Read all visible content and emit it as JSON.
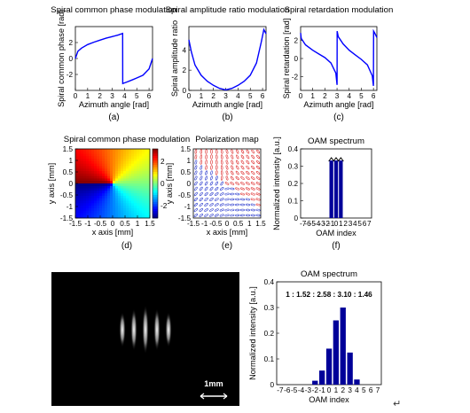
{
  "chart_data": [
    {
      "panel_label": "(a)",
      "type": "line",
      "title": "Spiral common phase modulation",
      "xlabel": "Azimuth angle [rad]",
      "ylabel": "Spiral common phase [rad]",
      "xlim": [
        0,
        6.283
      ],
      "ylim": [
        -4,
        4
      ],
      "xticks": [
        "0",
        "1",
        "2",
        "3",
        "4",
        "5",
        "6"
      ],
      "yticks": [
        "-2",
        "0",
        "2"
      ],
      "color": "#0000ff",
      "series": [
        {
          "x": [
            0,
            0.2,
            0.5,
            1,
            1.5,
            2,
            2.5,
            3,
            3.5,
            3.85,
            3.86,
            4.2,
            4.6,
            5,
            5.5,
            6,
            6.283
          ],
          "y": [
            0,
            0.9,
            1.3,
            1.75,
            2.05,
            2.3,
            2.55,
            2.75,
            2.95,
            3.14,
            -3.14,
            -2.95,
            -2.7,
            -2.45,
            -2.1,
            -1.3,
            0
          ]
        }
      ]
    },
    {
      "panel_label": "(b)",
      "type": "line",
      "title": "Spiral amplitude ratio modulation",
      "xlabel": "Azimuth angle [rad]",
      "ylabel": "Spiral amplitude ratio",
      "xlim": [
        0,
        6.283
      ],
      "ylim": [
        0,
        6.3
      ],
      "xticks": [
        "0",
        "1",
        "2",
        "3",
        "4",
        "5",
        "6"
      ],
      "yticks": [
        "0",
        "2",
        "4"
      ],
      "color": "#0000ff",
      "series": [
        {
          "x": [
            0,
            0.2,
            0.5,
            1,
            1.5,
            2,
            2.5,
            3,
            3.5,
            4,
            4.5,
            5,
            5.5,
            5.9,
            6.1,
            6.283
          ],
          "y": [
            5,
            3.8,
            2.5,
            1.5,
            0.9,
            0.5,
            0.2,
            0.05,
            0.2,
            0.5,
            0.9,
            1.5,
            2.7,
            4.8,
            6,
            5.6
          ]
        }
      ]
    },
    {
      "panel_label": "(c)",
      "type": "line",
      "title": "Spiral retardation modulation",
      "xlabel": "Azimuth angle [rad]",
      "ylabel": "Spiral retardation [rad]",
      "xlim": [
        0,
        6.283
      ],
      "ylim": [
        -3.5,
        3.5
      ],
      "xticks": [
        "0",
        "1",
        "2",
        "3",
        "4",
        "5",
        "6"
      ],
      "yticks": [
        "-2",
        "0",
        "2"
      ],
      "color": "#0000ff",
      "series": [
        {
          "x": [
            0,
            0.05,
            0.4,
            1,
            1.5,
            2,
            2.5,
            2.9,
            3.0,
            3.01,
            3.1,
            3.5,
            4,
            4.5,
            5,
            5.5,
            5.9,
            6.0,
            6.01,
            6.1,
            6.283
          ],
          "y": [
            2.8,
            2.2,
            1.5,
            0.9,
            0.5,
            0.1,
            -0.5,
            -1.6,
            -2.9,
            3.0,
            2.4,
            1.6,
            0.9,
            0.4,
            -0.1,
            -0.7,
            -1.9,
            -3.0,
            3.0,
            2.8,
            2.3
          ]
        }
      ]
    },
    {
      "panel_label": "(d)",
      "type": "heatmap",
      "title": "Spiral common phase modulation",
      "xlabel": "x axis [mm]",
      "ylabel": "y axis [mm]",
      "xlim": [
        -1.5,
        1.5
      ],
      "ylim": [
        -1.5,
        1.5
      ],
      "xticks": [
        "-1.5",
        "-1",
        "-0.5",
        "0",
        "0.5",
        "1",
        "1.5"
      ],
      "yticks": [
        "-1.5",
        "-1",
        "-0.5",
        "0",
        "0.5",
        "1",
        "1.5"
      ],
      "colorbar_ticks": [
        "-2",
        "0",
        "2"
      ],
      "colorbar_range": [
        -3.14,
        3.14
      ],
      "colormap": "jet"
    },
    {
      "panel_label": "(e)",
      "type": "other",
      "title": "Polarization map",
      "xlabel": "x axis [mm]",
      "ylabel": "y axis [mm]",
      "xlim": [
        -1.5,
        1.5
      ],
      "ylim": [
        -1.5,
        1.5
      ],
      "xticks": [
        "-1.5",
        "-1",
        "-0.5",
        "0",
        "0.5",
        "1",
        "1.5"
      ],
      "yticks": [
        "-1.5",
        "-1",
        "-0.5",
        "0",
        "0.5",
        "1",
        "1.5"
      ],
      "colors": {
        "left_handed": "#2233cc",
        "right_handed": "#dd2222"
      }
    },
    {
      "panel_label": "(f)",
      "type": "bar",
      "title": "OAM spectrum",
      "xlabel": "OAM index",
      "ylabel": "Normalized intensity [a.u.]",
      "categories": [
        "-7",
        "-6",
        "-5",
        "-4",
        "-3",
        "-2",
        "-1",
        "0",
        "1",
        "2",
        "3",
        "4",
        "5",
        "6",
        "7"
      ],
      "values": [
        0,
        0,
        0,
        0,
        0,
        0,
        0.333,
        0.333,
        0.333,
        0,
        0,
        0,
        0,
        0,
        0
      ],
      "ylim": [
        0,
        0.4
      ],
      "yticks": [
        "0",
        "0.1",
        "0.2",
        "0.3",
        "0.4"
      ],
      "color": "#000099"
    },
    {
      "type": "other",
      "scale_bar_label": "1mm",
      "fringe_count": 5
    },
    {
      "type": "bar",
      "title": "OAM spectrum",
      "annotation": "1 : 1.52 : 2.58 : 3.10 : 1.46",
      "xlabel": "OAM index",
      "ylabel": "Normalized intensity [a.u.]",
      "categories": [
        "-7",
        "-6",
        "-5",
        "-4",
        "-3",
        "-2",
        "-1",
        "0",
        "1",
        "2",
        "3",
        "4",
        "5",
        "6",
        "7"
      ],
      "values": [
        0,
        0,
        0,
        0,
        0,
        0.015,
        0.055,
        0.14,
        0.25,
        0.3,
        0.125,
        0.02,
        0,
        0,
        0
      ],
      "ylim": [
        0,
        0.4
      ],
      "yticks": [
        "0",
        "0.1",
        "0.2",
        "0.3",
        "0.4"
      ],
      "color": "#000099"
    }
  ],
  "page": {
    "return_mark": "↵"
  }
}
